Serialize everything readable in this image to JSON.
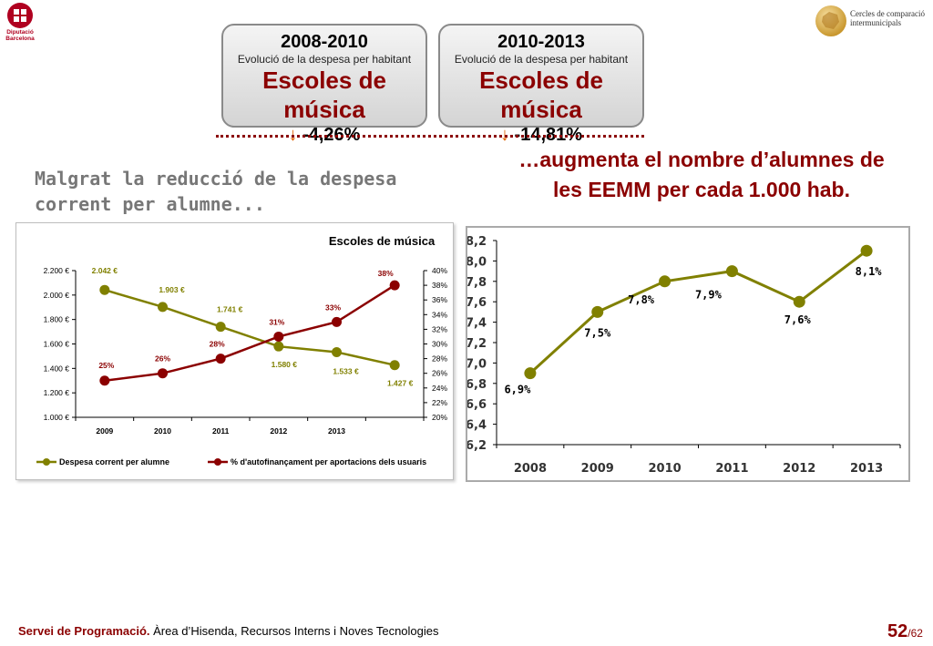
{
  "logo_left": {
    "line1": "Diputació",
    "line2": "Barcelona"
  },
  "logo_right": {
    "line1": "Cercles de comparació",
    "line2": "intermunicipals"
  },
  "boxes": [
    {
      "period": "2008-2010",
      "subtitle": "Evolució de la despesa per habitant",
      "title": "Escoles de música",
      "arrow": "↓",
      "change": "-4,26%"
    },
    {
      "period": "2010-2013",
      "subtitle": "Evolució de la despesa per habitant",
      "title": "Escoles de música",
      "arrow": "↓",
      "change": "-14,81%"
    }
  ],
  "text_left": "Malgrat la reducció de la despesa corrent per alumne...",
  "text_right": "…augmenta el nombre d’alumnes de les EEMM per cada 1.000 hab.",
  "colors": {
    "olive": "#808000",
    "darkred": "#8b0000",
    "title_red": "#8b0000"
  },
  "chart_data": [
    {
      "type": "line",
      "title": "Escoles de música",
      "categories": [
        "2009",
        "2010",
        "2011",
        "2012",
        "2013",
        ""
      ],
      "series": [
        {
          "name": "Despesa corrent per alumne",
          "axis": "left",
          "color": "#808000",
          "values": [
            2042,
            1903,
            1741,
            1580,
            1533,
            1427
          ],
          "labels": [
            "2.042 €",
            "1.903 €",
            "1.741 €",
            "1.580 €",
            "1.533 €",
            "1.427 €"
          ]
        },
        {
          "name": "% d'autofinançament per aportacions dels usuaris",
          "axis": "right",
          "color": "#8b0000",
          "values": [
            25,
            26,
            28,
            31,
            33,
            38
          ],
          "labels": [
            "25%",
            "26%",
            "28%",
            "31%",
            "33%",
            "38%"
          ]
        }
      ],
      "y_left": {
        "min": 1000,
        "max": 2200,
        "ticks": [
          "1.000 €",
          "1.200 €",
          "1.400 €",
          "1.600 €",
          "1.800 €",
          "2.000 €",
          "2.200 €"
        ]
      },
      "y_right": {
        "min": 20,
        "max": 40,
        "ticks": [
          "20%",
          "22%",
          "24%",
          "26%",
          "28%",
          "30%",
          "32%",
          "34%",
          "36%",
          "38%",
          "40%"
        ]
      },
      "legend": "bottom"
    },
    {
      "type": "line",
      "categories": [
        "2008",
        "2009",
        "2010",
        "2011",
        "2012",
        "2013"
      ],
      "series": [
        {
          "color": "#808000",
          "values": [
            6.9,
            7.5,
            7.8,
            7.9,
            7.6,
            8.1
          ],
          "labels": [
            "6,9%",
            "7,5%",
            "7,8%",
            "7,9%",
            "7,6%",
            "8,1%"
          ]
        }
      ],
      "ylim": [
        6.2,
        8.2
      ],
      "y_ticks": [
        "6,2",
        "6,4",
        "6,6",
        "6,8",
        "7,0",
        "7,2",
        "7,4",
        "7,6",
        "7,8",
        "8,0",
        "8,2"
      ]
    }
  ],
  "footer": {
    "bold": "Servei de Programació.",
    "rest": " Àrea d’Hisenda, Recursos Interns i Noves Tecnologies"
  },
  "page": {
    "number": "52",
    "total": "/62"
  }
}
